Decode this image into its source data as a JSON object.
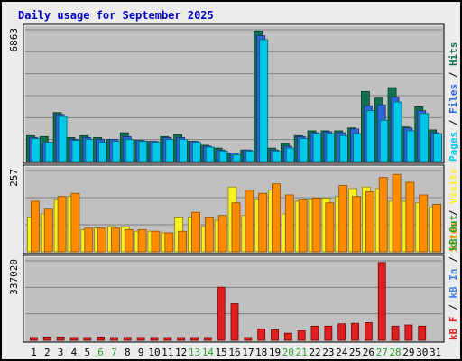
{
  "title": "Daily usage for September 2025",
  "colors": {
    "background": "#c0c0c0",
    "pages": "#00c8e8",
    "files": "#2e66d8",
    "hits": "#107050",
    "visits": "#f8f020",
    "sites": "#ff8c00",
    "kb_in": "#3a7fe0",
    "kb_out": "#2f9b2f",
    "kb_f": "#e02020",
    "weekend_label": "#2f9b2f"
  },
  "chart_data": [
    {
      "type": "bar",
      "panel": "hits-files-pages",
      "categories": [
        "1",
        "2",
        "3",
        "4",
        "5",
        "6",
        "7",
        "8",
        "9",
        "10",
        "11",
        "12",
        "13",
        "14",
        "15",
        "16",
        "17",
        "18",
        "19",
        "20",
        "21",
        "22",
        "23",
        "24",
        "25",
        "26",
        "27",
        "28",
        "29",
        "30",
        "31"
      ],
      "y_tick_label": "6863",
      "ylim": [
        0,
        6863
      ],
      "grid": true,
      "legend": [
        "Pages",
        "Files",
        "Hits"
      ],
      "series": [
        {
          "name": "Hits",
          "values": [
            1350,
            1300,
            2550,
            1250,
            1350,
            1250,
            1150,
            1500,
            1100,
            1050,
            1300,
            1400,
            1050,
            850,
            700,
            450,
            600,
            6800,
            700,
            950,
            1350,
            1600,
            1600,
            1600,
            1750,
            3650,
            3300,
            3850,
            1800,
            2850,
            1650
          ]
        },
        {
          "name": "Files",
          "values": [
            1250,
            1000,
            2450,
            1150,
            1250,
            1150,
            1150,
            1300,
            1100,
            1050,
            1250,
            1250,
            1050,
            800,
            600,
            450,
            600,
            6550,
            600,
            800,
            1300,
            1500,
            1550,
            1500,
            1700,
            2900,
            2950,
            3350,
            1750,
            2650,
            1500
          ]
        },
        {
          "name": "Pages",
          "values": [
            1200,
            1000,
            2350,
            1100,
            1150,
            1000,
            1050,
            1150,
            1050,
            1000,
            1150,
            1150,
            1000,
            750,
            550,
            350,
            550,
            6350,
            550,
            700,
            1200,
            1450,
            1450,
            1350,
            1450,
            2650,
            2150,
            3100,
            1600,
            2500,
            1450
          ]
        }
      ]
    },
    {
      "type": "bar",
      "panel": "sites-visits",
      "categories": [
        "1",
        "2",
        "3",
        "4",
        "5",
        "6",
        "7",
        "8",
        "9",
        "10",
        "11",
        "12",
        "13",
        "14",
        "15",
        "16",
        "17",
        "18",
        "19",
        "20",
        "21",
        "22",
        "23",
        "24",
        "25",
        "26",
        "27",
        "28",
        "29",
        "30",
        "31"
      ],
      "y_tick_label": "257",
      "ylim": [
        0,
        257
      ],
      "grid": true,
      "legend": [
        "Sites",
        "Visits"
      ],
      "series": [
        {
          "name": "Visits",
          "values": [
            110,
            120,
            165,
            175,
            70,
            75,
            80,
            80,
            65,
            65,
            60,
            110,
            110,
            80,
            100,
            205,
            115,
            165,
            195,
            120,
            160,
            165,
            170,
            175,
            200,
            205,
            200,
            160,
            160,
            155,
            140
          ]
        },
        {
          "name": "Sites",
          "values": [
            160,
            135,
            175,
            185,
            75,
            75,
            75,
            70,
            70,
            65,
            60,
            65,
            125,
            110,
            115,
            155,
            195,
            185,
            215,
            180,
            165,
            170,
            155,
            210,
            175,
            190,
            235,
            245,
            220,
            180,
            150
          ]
        }
      ]
    },
    {
      "type": "bar",
      "panel": "kbytes",
      "categories": [
        "1",
        "2",
        "3",
        "4",
        "5",
        "6",
        "7",
        "8",
        "9",
        "10",
        "11",
        "12",
        "13",
        "14",
        "15",
        "16",
        "17",
        "18",
        "19",
        "20",
        "21",
        "22",
        "23",
        "24",
        "25",
        "26",
        "27",
        "28",
        "29",
        "30",
        "31"
      ],
      "y_tick_label": "337020",
      "ylim": [
        0,
        337020
      ],
      "grid": true,
      "legend": [
        "kB F",
        "kB In",
        "kB Out"
      ],
      "series": [
        {
          "name": "kB F",
          "values": [
            10000,
            14000,
            14000,
            9000,
            9000,
            14000,
            10000,
            12000,
            7000,
            6000,
            8000,
            7000,
            5000,
            5000,
            225000,
            155000,
            10000,
            48000,
            45000,
            30000,
            40000,
            60000,
            60000,
            70000,
            72000,
            75000,
            330000,
            60000,
            65000,
            60000,
            0
          ]
        }
      ]
    }
  ],
  "x_axis": {
    "labels": [
      "1",
      "2",
      "3",
      "4",
      "5",
      "6",
      "7",
      "8",
      "9",
      "10",
      "11",
      "12",
      "13",
      "14",
      "15",
      "16",
      "17",
      "18",
      "19",
      "20",
      "21",
      "22",
      "23",
      "24",
      "25",
      "26",
      "27",
      "28",
      "29",
      "30",
      "31"
    ],
    "weekend_days": [
      "6",
      "7",
      "13",
      "14",
      "20",
      "21",
      "27",
      "28"
    ]
  },
  "legend_text": {
    "top": [
      {
        "text": "Pages",
        "color_key": "pages"
      },
      {
        "text": "Files",
        "color_key": "files"
      },
      {
        "text": "Hits",
        "color_key": "hits"
      }
    ],
    "middle": [
      {
        "text": "Sites",
        "color_key": "sites"
      },
      {
        "text": "Visits",
        "color_key": "visits"
      }
    ],
    "bottom": [
      {
        "text": "kB F",
        "color_key": "kb_f"
      },
      {
        "text": "kB In",
        "color_key": "kb_in"
      },
      {
        "text": "kB Out",
        "color_key": "kb_out"
      }
    ]
  }
}
